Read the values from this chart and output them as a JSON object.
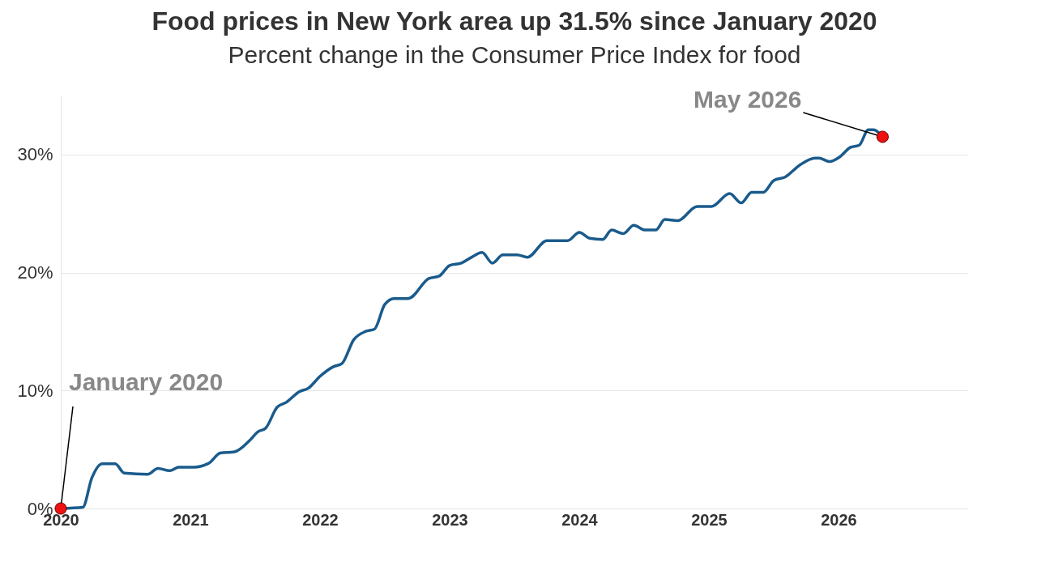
{
  "chart_data": {
    "type": "line",
    "title": "Food prices in New York area up 31.5% since January 2020",
    "subtitle": "Percent change in the Consumer Price Index for food",
    "x": [
      2020.0,
      2020.17,
      2020.24,
      2020.32,
      2020.42,
      2020.49,
      2020.67,
      2020.75,
      2020.84,
      2020.91,
      2021.03,
      2021.15,
      2021.23,
      2021.34,
      2021.46,
      2021.52,
      2021.58,
      2021.67,
      2021.74,
      2021.84,
      2021.91,
      2022.0,
      2022.1,
      2022.17,
      2022.26,
      2022.35,
      2022.42,
      2022.5,
      2022.57,
      2022.68,
      2022.84,
      2022.92,
      2023.0,
      2023.09,
      2023.17,
      2023.25,
      2023.33,
      2023.41,
      2023.52,
      2023.6,
      2023.75,
      2023.91,
      2024.0,
      2024.08,
      2024.18,
      2024.25,
      2024.34,
      2024.42,
      2024.51,
      2024.59,
      2024.66,
      2024.76,
      2024.91,
      2025.02,
      2025.16,
      2025.25,
      2025.33,
      2025.42,
      2025.5,
      2025.59,
      2025.7,
      2025.82,
      2025.85,
      2025.93,
      2026.01,
      2026.09,
      2026.16,
      2026.23,
      2026.27,
      2026.34
    ],
    "series": [
      {
        "color": "#1a5b8c",
        "values": [
          0.0,
          0.1,
          2.6,
          3.8,
          3.8,
          3.0,
          2.9,
          3.4,
          3.2,
          3.5,
          3.5,
          3.9,
          4.7,
          4.8,
          5.8,
          6.5,
          6.8,
          8.6,
          9.0,
          9.9,
          10.2,
          11.2,
          12.0,
          12.3,
          14.3,
          15.0,
          15.2,
          17.3,
          17.8,
          17.8,
          19.5,
          19.7,
          20.6,
          20.8,
          21.3,
          21.7,
          20.8,
          21.5,
          21.5,
          21.3,
          22.7,
          22.7,
          23.4,
          22.9,
          22.8,
          23.6,
          23.3,
          24.0,
          23.6,
          23.6,
          24.5,
          24.4,
          25.6,
          25.6,
          26.7,
          25.9,
          26.8,
          26.8,
          27.8,
          28.1,
          29.1,
          29.7,
          29.7,
          29.4,
          29.8,
          30.6,
          30.8,
          32.1,
          32.1,
          31.5
        ]
      }
    ],
    "xlim": [
      2020,
      2027
    ],
    "xticks": [
      2020,
      2021,
      2022,
      2023,
      2024,
      2025,
      2026
    ],
    "ylim": [
      0,
      35
    ],
    "yticks": [
      {
        "value": 0,
        "label": "0%"
      },
      {
        "value": 10,
        "label": "10%"
      },
      {
        "value": 20,
        "label": "20%"
      },
      {
        "value": 30,
        "label": "30%"
      }
    ],
    "grid": "y",
    "annotations": [
      {
        "text": "January 2020",
        "x": 2020.0,
        "y": 0.0
      },
      {
        "text": "May 2026",
        "x": 2026.34,
        "y": 31.5
      }
    ]
  }
}
